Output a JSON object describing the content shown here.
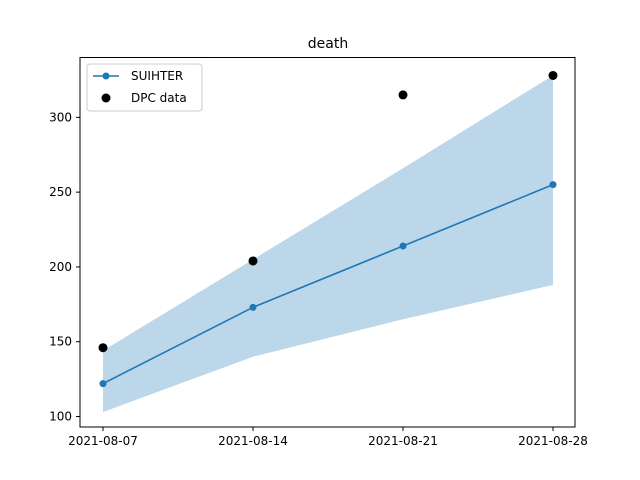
{
  "chart_data": {
    "type": "line",
    "title": "death",
    "xlabel": "",
    "ylabel": "",
    "x": [
      "2021-08-07",
      "2021-08-14",
      "2021-08-21",
      "2021-08-28"
    ],
    "xticks": [
      "2021-08-07",
      "2021-08-14",
      "2021-08-21",
      "2021-08-28"
    ],
    "yticks": [
      100,
      150,
      200,
      250,
      300
    ],
    "ylim": [
      93,
      340
    ],
    "grid": false,
    "legend_position": "upper-left",
    "series": [
      {
        "name": "SUIHTER",
        "kind": "line-markers",
        "color": "#1f77b4",
        "values": [
          122,
          173,
          214,
          255
        ],
        "band": {
          "lower": [
            103,
            140,
            165,
            188
          ],
          "upper": [
            144,
            205,
            266,
            328
          ],
          "color": "#bcd6ea"
        }
      },
      {
        "name": "DPC data",
        "kind": "scatter",
        "color": "#000000",
        "values": [
          146,
          204,
          315,
          328
        ]
      }
    ]
  }
}
